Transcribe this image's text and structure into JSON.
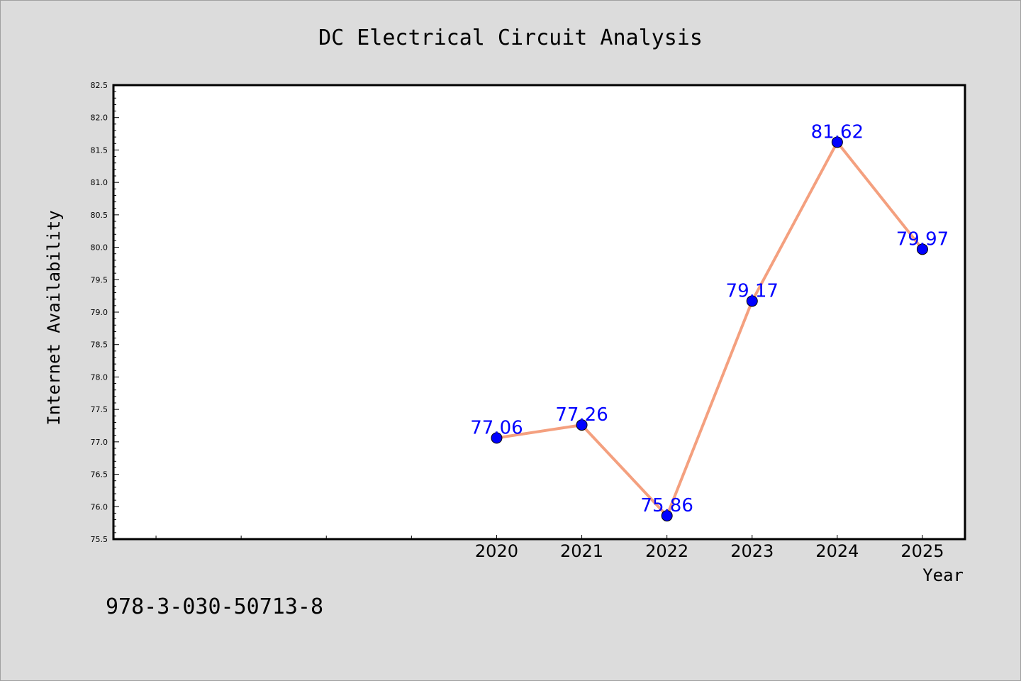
{
  "chart_data": {
    "type": "line",
    "title": "DC Electrical Circuit Analysis",
    "xlabel": "Year",
    "ylabel": "Internet Availability",
    "categories": [
      "2020",
      "2021",
      "2022",
      "2023",
      "2024",
      "2025"
    ],
    "x": [
      2020,
      2021,
      2022,
      2023,
      2024,
      2025
    ],
    "values": [
      77.06,
      77.26,
      75.86,
      79.17,
      81.62,
      79.97
    ],
    "data_labels": [
      "77.06",
      "77.26",
      "75.86",
      "79.17",
      "81.62",
      "79.97"
    ],
    "ylim": [
      75.5,
      82.5
    ],
    "xlim": [
      2015.5,
      2025.5
    ],
    "yticks": [
      "75.5",
      "76.0",
      "76.5",
      "77.0",
      "77.5",
      "78.0",
      "78.5",
      "79.0",
      "79.5",
      "80.0",
      "80.5",
      "81.0",
      "81.5",
      "82.0",
      "82.5"
    ],
    "grid": false,
    "line_color": "#f4a07f",
    "marker_color": "#0000ff",
    "label_color": "#0000ff"
  },
  "annotation": "978-3-030-50713-8"
}
